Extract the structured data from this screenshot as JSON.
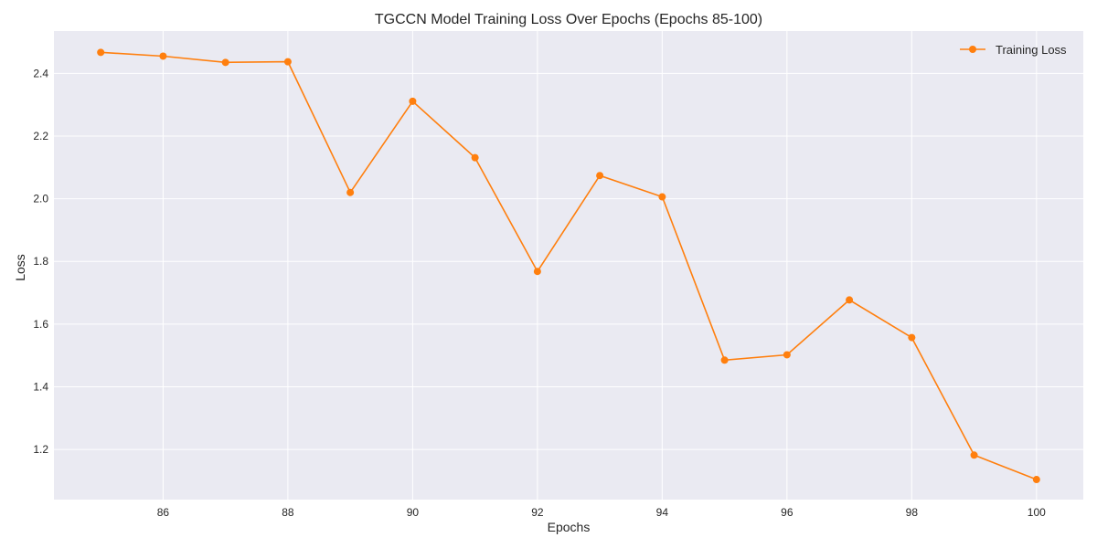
{
  "chart_data": {
    "type": "line",
    "title": "TGCCN Model Training Loss Over Epochs (Epochs 85-100)",
    "xlabel": "Epochs",
    "ylabel": "Loss",
    "xlim": [
      84.25,
      100.75
    ],
    "ylim": [
      1.04,
      2.535
    ],
    "xticks": [
      86,
      88,
      90,
      92,
      94,
      96,
      98,
      100
    ],
    "yticks": [
      1.2,
      1.4,
      1.6,
      1.8,
      2.0,
      2.2,
      2.4
    ],
    "xtick_labels": [
      "86",
      "88",
      "90",
      "92",
      "94",
      "96",
      "98",
      "100"
    ],
    "ytick_labels": [
      "1.2",
      "1.4",
      "1.6",
      "1.8",
      "2.0",
      "2.2",
      "2.4"
    ],
    "grid": true,
    "legend_position": "top-right",
    "colors": {
      "background": "#eaeaf2",
      "grid": "#ffffff",
      "series": "#ff7f0e"
    },
    "series": [
      {
        "name": "Training Loss",
        "x": [
          85,
          86,
          87,
          88,
          89,
          90,
          91,
          92,
          93,
          94,
          95,
          96,
          97,
          98,
          99,
          100
        ],
        "y": [
          2.467,
          2.455,
          2.435,
          2.437,
          2.02,
          2.311,
          2.131,
          1.768,
          2.074,
          2.006,
          1.485,
          1.502,
          1.677,
          1.557,
          1.182,
          1.104
        ]
      }
    ]
  }
}
